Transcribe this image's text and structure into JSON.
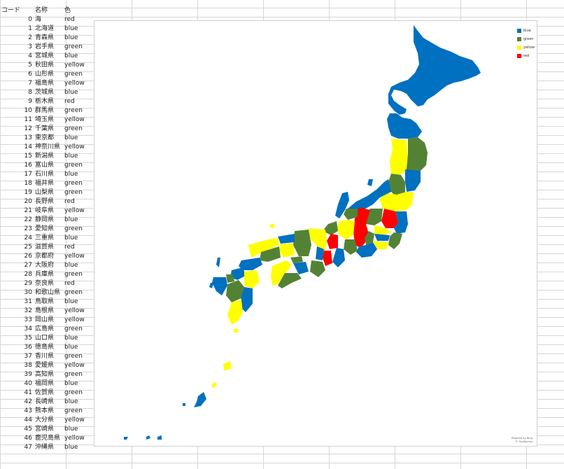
{
  "sheet": {
    "headers": [
      "コード",
      "名称",
      "色"
    ],
    "rows": [
      [
        "0",
        "海",
        "red"
      ],
      [
        "1",
        "北海道",
        "blue"
      ],
      [
        "2",
        "青森県",
        "blue"
      ],
      [
        "3",
        "岩手県",
        "green"
      ],
      [
        "4",
        "宮城県",
        "blue"
      ],
      [
        "5",
        "秋田県",
        "yellow"
      ],
      [
        "6",
        "山形県",
        "green"
      ],
      [
        "7",
        "福島県",
        "yellow"
      ],
      [
        "8",
        "茨城県",
        "blue"
      ],
      [
        "9",
        "栃木県",
        "red"
      ],
      [
        "10",
        "群馬県",
        "green"
      ],
      [
        "11",
        "埼玉県",
        "yellow"
      ],
      [
        "12",
        "千葉県",
        "green"
      ],
      [
        "13",
        "東京都",
        "blue"
      ],
      [
        "14",
        "神奈川県",
        "yellow"
      ],
      [
        "15",
        "新潟県",
        "blue"
      ],
      [
        "16",
        "富山県",
        "green"
      ],
      [
        "17",
        "石川県",
        "blue"
      ],
      [
        "18",
        "福井県",
        "green"
      ],
      [
        "19",
        "山梨県",
        "green"
      ],
      [
        "20",
        "長野県",
        "red"
      ],
      [
        "21",
        "岐阜県",
        "yellow"
      ],
      [
        "22",
        "静岡県",
        "blue"
      ],
      [
        "23",
        "愛知県",
        "green"
      ],
      [
        "24",
        "三重県",
        "blue"
      ],
      [
        "25",
        "滋賀県",
        "red"
      ],
      [
        "26",
        "京都府",
        "yellow"
      ],
      [
        "27",
        "大阪府",
        "blue"
      ],
      [
        "28",
        "兵庫県",
        "green"
      ],
      [
        "29",
        "奈良県",
        "red"
      ],
      [
        "30",
        "和歌山県",
        "green"
      ],
      [
        "31",
        "鳥取県",
        "blue"
      ],
      [
        "32",
        "島根県",
        "yellow"
      ],
      [
        "33",
        "岡山県",
        "yellow"
      ],
      [
        "34",
        "広島県",
        "green"
      ],
      [
        "35",
        "山口県",
        "blue"
      ],
      [
        "36",
        "徳島県",
        "blue"
      ],
      [
        "37",
        "香川県",
        "green"
      ],
      [
        "38",
        "愛媛県",
        "yellow"
      ],
      [
        "39",
        "高知県",
        "green"
      ],
      [
        "40",
        "福岡県",
        "blue"
      ],
      [
        "41",
        "佐賀県",
        "green"
      ],
      [
        "42",
        "長崎県",
        "blue"
      ],
      [
        "43",
        "熊本県",
        "green"
      ],
      [
        "44",
        "大分県",
        "yellow"
      ],
      [
        "45",
        "宮崎県",
        "blue"
      ],
      [
        "46",
        "鹿児島県",
        "yellow"
      ],
      [
        "47",
        "沖縄県",
        "blue"
      ]
    ]
  },
  "map": {
    "legend": [
      {
        "label": "blue",
        "color": "#0070c0"
      },
      {
        "label": "green",
        "color": "#548235"
      },
      {
        "label": "yellow",
        "color": "#ffff00"
      },
      {
        "label": "red",
        "color": "#ff0000"
      }
    ],
    "credit_line1": "Powered by Bing",
    "credit_line2": "© GeoNames"
  },
  "palette": {
    "blue": "#0070c0",
    "green": "#548235",
    "yellow": "#ffff00",
    "red": "#ff0000"
  }
}
